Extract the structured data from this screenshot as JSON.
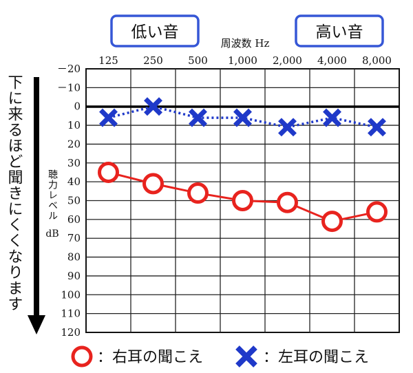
{
  "labels": {
    "low_sound": "低い音",
    "high_sound": "高い音",
    "freq_axis_title": "周波数 Hz",
    "level_axis_title": "聴力レベル",
    "level_axis_unit": "dB",
    "side_arrow_text": "下に来るほど聞きにくくなります"
  },
  "legend": {
    "right_ear": "：右耳の聞こえ",
    "left_ear": "：左耳の聞こえ"
  },
  "colors": {
    "right_ear": "#e8231e",
    "left_ear": "#1f39c9",
    "badge_border": "#3657d6"
  },
  "chart_data": {
    "type": "line",
    "x_tick_labels": [
      "125",
      "250",
      "500",
      "1,000",
      "2,000",
      "4,000",
      "8,000"
    ],
    "y_tick_labels": [
      "－20",
      "－10",
      "0",
      "10",
      "20",
      "30",
      "40",
      "50",
      "60",
      "70",
      "80",
      "90",
      "100",
      "110",
      "120"
    ],
    "ylim": [
      -20,
      120
    ],
    "y_inverted": true,
    "grid": true,
    "zero_line_bold": true,
    "series": [
      {
        "name": "右耳の聞こえ",
        "marker": "circle",
        "line_style": "solid",
        "values": [
          35,
          41,
          46,
          50,
          51,
          61,
          56
        ]
      },
      {
        "name": "左耳の聞こえ",
        "marker": "cross",
        "line_style": "dotted",
        "values": [
          6,
          0,
          6,
          6,
          11,
          6,
          11
        ]
      }
    ]
  }
}
